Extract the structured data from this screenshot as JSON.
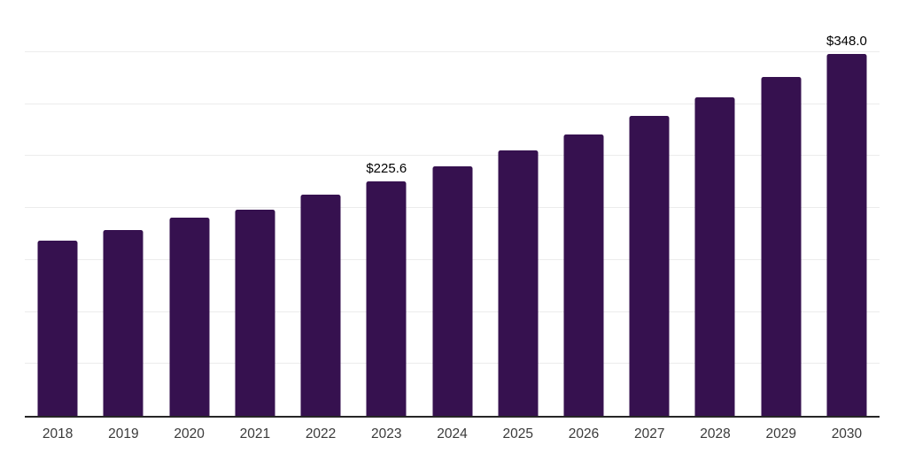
{
  "chart_data": {
    "type": "bar",
    "title": "",
    "xlabel": "",
    "ylabel": "",
    "categories": [
      "2018",
      "2019",
      "2020",
      "2021",
      "2022",
      "2023",
      "2024",
      "2025",
      "2026",
      "2027",
      "2028",
      "2029",
      "2030"
    ],
    "values": [
      168.4,
      178.5,
      191.0,
      198.6,
      212.4,
      225.6,
      240.0,
      255.4,
      271.0,
      288.1,
      306.5,
      326.2,
      348.0
    ],
    "data_labels": {
      "2023": "$225.6",
      "2030": "$348.0"
    },
    "ylim": [
      0,
      400
    ],
    "gridline_step": 50,
    "grid": "horizontal-only",
    "legend_position": "none",
    "colors": {
      "bar": "#36114F",
      "gridline": "#ececec",
      "axis_line": "#262626",
      "tick_label": "#3a3a3a",
      "value_label": "#000000",
      "background": "#ffffff"
    }
  }
}
